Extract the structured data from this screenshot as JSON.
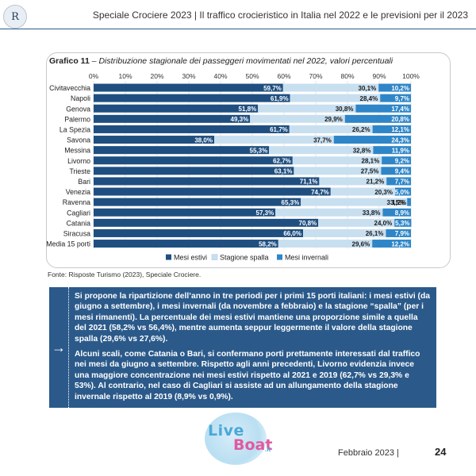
{
  "header": {
    "logo_text": "R",
    "title": "Speciale Crociere 2023 | Il traffico crocieristico in Italia nel 2022 e le previsioni per il 2023"
  },
  "chart_title": {
    "label": "Grafico 11",
    "text": " – Distribuzione stagionale dei passeggeri movimentati nel 2022, valori percentuali"
  },
  "chart_data": {
    "type": "bar",
    "orientation": "horizontal",
    "stacked": true,
    "title": "Grafico 11 – Distribuzione stagionale dei passeggeri movimentati nel 2022, valori percentuali",
    "xlim": [
      0,
      100
    ],
    "x_ticks": [
      "0%",
      "10%",
      "20%",
      "30%",
      "40%",
      "50%",
      "60%",
      "70%",
      "80%",
      "90%",
      "100%"
    ],
    "categories": [
      "Civitavecchia",
      "Napoli",
      "Genova",
      "Palermo",
      "La Spezia",
      "Savona",
      "Messina",
      "Livorno",
      "Trieste",
      "Bari",
      "Venezia",
      "Ravenna",
      "Cagliari",
      "Catania",
      "Siracusa",
      "Media 15 porti"
    ],
    "series": [
      {
        "name": "Mesi estivi",
        "color": "#1f4f80",
        "label_color": "#ffffff",
        "values": [
          59.7,
          61.9,
          51.8,
          49.3,
          61.7,
          38.0,
          55.3,
          62.7,
          63.1,
          71.1,
          74.7,
          65.3,
          57.3,
          70.8,
          66.0,
          58.2
        ],
        "labels": [
          "59,7%",
          "61,9%",
          "51,8%",
          "49,3%",
          "61,7%",
          "38,0%",
          "55,3%",
          "62,7%",
          "63,1%",
          "71,1%",
          "74,7%",
          "65,3%",
          "57,3%",
          "70,8%",
          "66,0%",
          "58,2%"
        ]
      },
      {
        "name": "Stagione spalla",
        "color": "#c8dff0",
        "label_color": "#1a1a1a",
        "values": [
          30.1,
          28.4,
          30.8,
          29.9,
          26.2,
          37.7,
          32.8,
          28.1,
          27.5,
          21.2,
          20.3,
          33.5,
          33.8,
          24.0,
          26.1,
          29.6
        ],
        "labels": [
          "30,1%",
          "28,4%",
          "30,8%",
          "29,9%",
          "26,2%",
          "37,7%",
          "32,8%",
          "28,1%",
          "27,5%",
          "21,2%",
          "20,3%",
          "33,5%",
          "33,8%",
          "24,0%",
          "26,1%",
          "29,6%"
        ]
      },
      {
        "name": "Mesi invernali",
        "color": "#2e86c8",
        "label_color": "#ffffff",
        "values": [
          10.2,
          9.7,
          17.4,
          20.8,
          12.1,
          24.3,
          11.9,
          9.2,
          9.4,
          7.7,
          5.0,
          1.2,
          8.9,
          5.3,
          7.9,
          12.2
        ],
        "labels": [
          "10,2%",
          "9,7%",
          "17,4%",
          "20,8%",
          "12,1%",
          "24,3%",
          "11,9%",
          "9,2%",
          "9,4%",
          "7,7%",
          "5,0%",
          "1,2%",
          "8,9%",
          "5,3%",
          "7,9%",
          "12,2%"
        ]
      }
    ],
    "legend_position": "bottom",
    "grid": true
  },
  "source": "Fonte: Risposte Turismo (2023), Speciale Crociere.",
  "info": {
    "arrow": "→",
    "p1": "Si propone la ripartizione dell’anno in tre periodi per i primi 15 porti italiani: i mesi estivi (da giugno a settembre), i mesi invernali (da novembre a febbraio) e la stagione “spalla” (per i mesi rimanenti). La percentuale dei mesi estivi mantiene una proporzione simile a quella del 2021 (58,2% vs 56,4%), mentre aumenta seppur leggermente il valore della stagione spalla (29,6% vs 27,6%).",
    "p2": "Alcuni scali, come Catania o Bari, si confermano porti prettamente interessati dal traffico nei mesi da giugno a settembre. Rispetto agli anni precedenti, Livorno evidenzia invece una maggiore concentrazione nei mesi estivi rispetto al 2021 e 2019 (62,7% vs 29,3% e 53%). Al contrario, nel caso di Cagliari si assiste ad un allungamento della stagione invernale rispetto al 2019 (8,9% vs 0,9%)."
  },
  "watermark": {
    "word1": "Live",
    "word2": "Boat",
    "suffix": ".it"
  },
  "footer": {
    "date": "Febbraio 2023  |",
    "page": "24"
  }
}
